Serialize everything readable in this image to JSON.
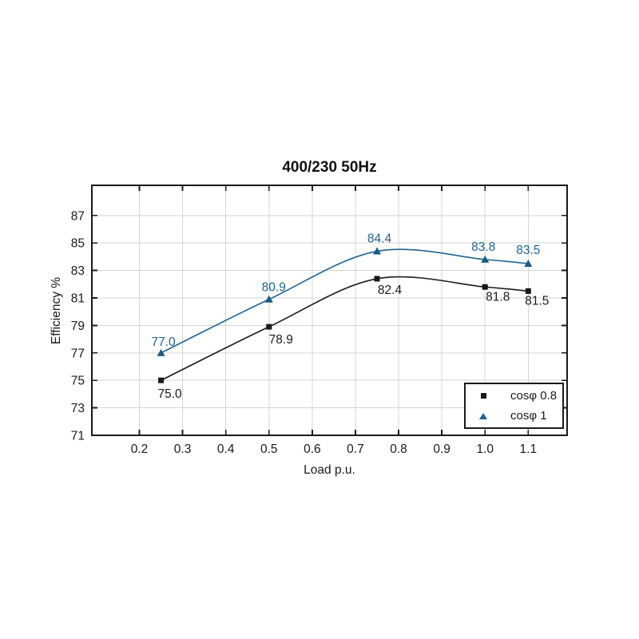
{
  "chart_data": {
    "type": "line",
    "title": "400/230 50Hz",
    "xlabel": "Load p.u.",
    "ylabel": "Efficiency %",
    "x": [
      0.25,
      0.5,
      0.75,
      1.0,
      1.1
    ],
    "series": [
      {
        "name": "cosφ 0.8",
        "marker": "square",
        "color": "#1a1a1a",
        "values": [
          75.0,
          78.9,
          82.4,
          81.8,
          81.5
        ],
        "label_side": "below",
        "label_offsets": [
          [
            11,
            22
          ],
          [
            15,
            21
          ],
          [
            16,
            19
          ],
          [
            16,
            17
          ],
          [
            11,
            17
          ]
        ]
      },
      {
        "name": "cosφ 1",
        "marker": "triangle",
        "color": "#1f6391",
        "values": [
          77.0,
          80.9,
          84.4,
          83.8,
          83.5
        ],
        "label_side": "above",
        "label_offsets": [
          [
            3,
            -9
          ],
          [
            6,
            -10
          ],
          [
            3,
            -11
          ],
          [
            -2,
            -11
          ],
          [
            0,
            -12
          ]
        ]
      }
    ],
    "xticks": [
      "0.2",
      "0.3",
      "0.4",
      "0.5",
      "0.6",
      "0.7",
      "0.8",
      "0.9",
      "1.0",
      "1.1"
    ],
    "yticks": [
      "71",
      "73",
      "75",
      "77",
      "79",
      "81",
      "83",
      "85",
      "87"
    ],
    "xlim": [
      0.09,
      1.19
    ],
    "ylim": [
      71,
      89.2
    ],
    "grid": true,
    "legend_position": "lower right"
  },
  "colors": {
    "background": "#ffffff",
    "grid": "#d5d5d5",
    "frame": "#1a1a1a",
    "tick_text": "#1a1a1a",
    "series_cos08": "#1a1a1a",
    "series_cos1": "#1f6391",
    "triangle_fill": "#1b5a84"
  }
}
